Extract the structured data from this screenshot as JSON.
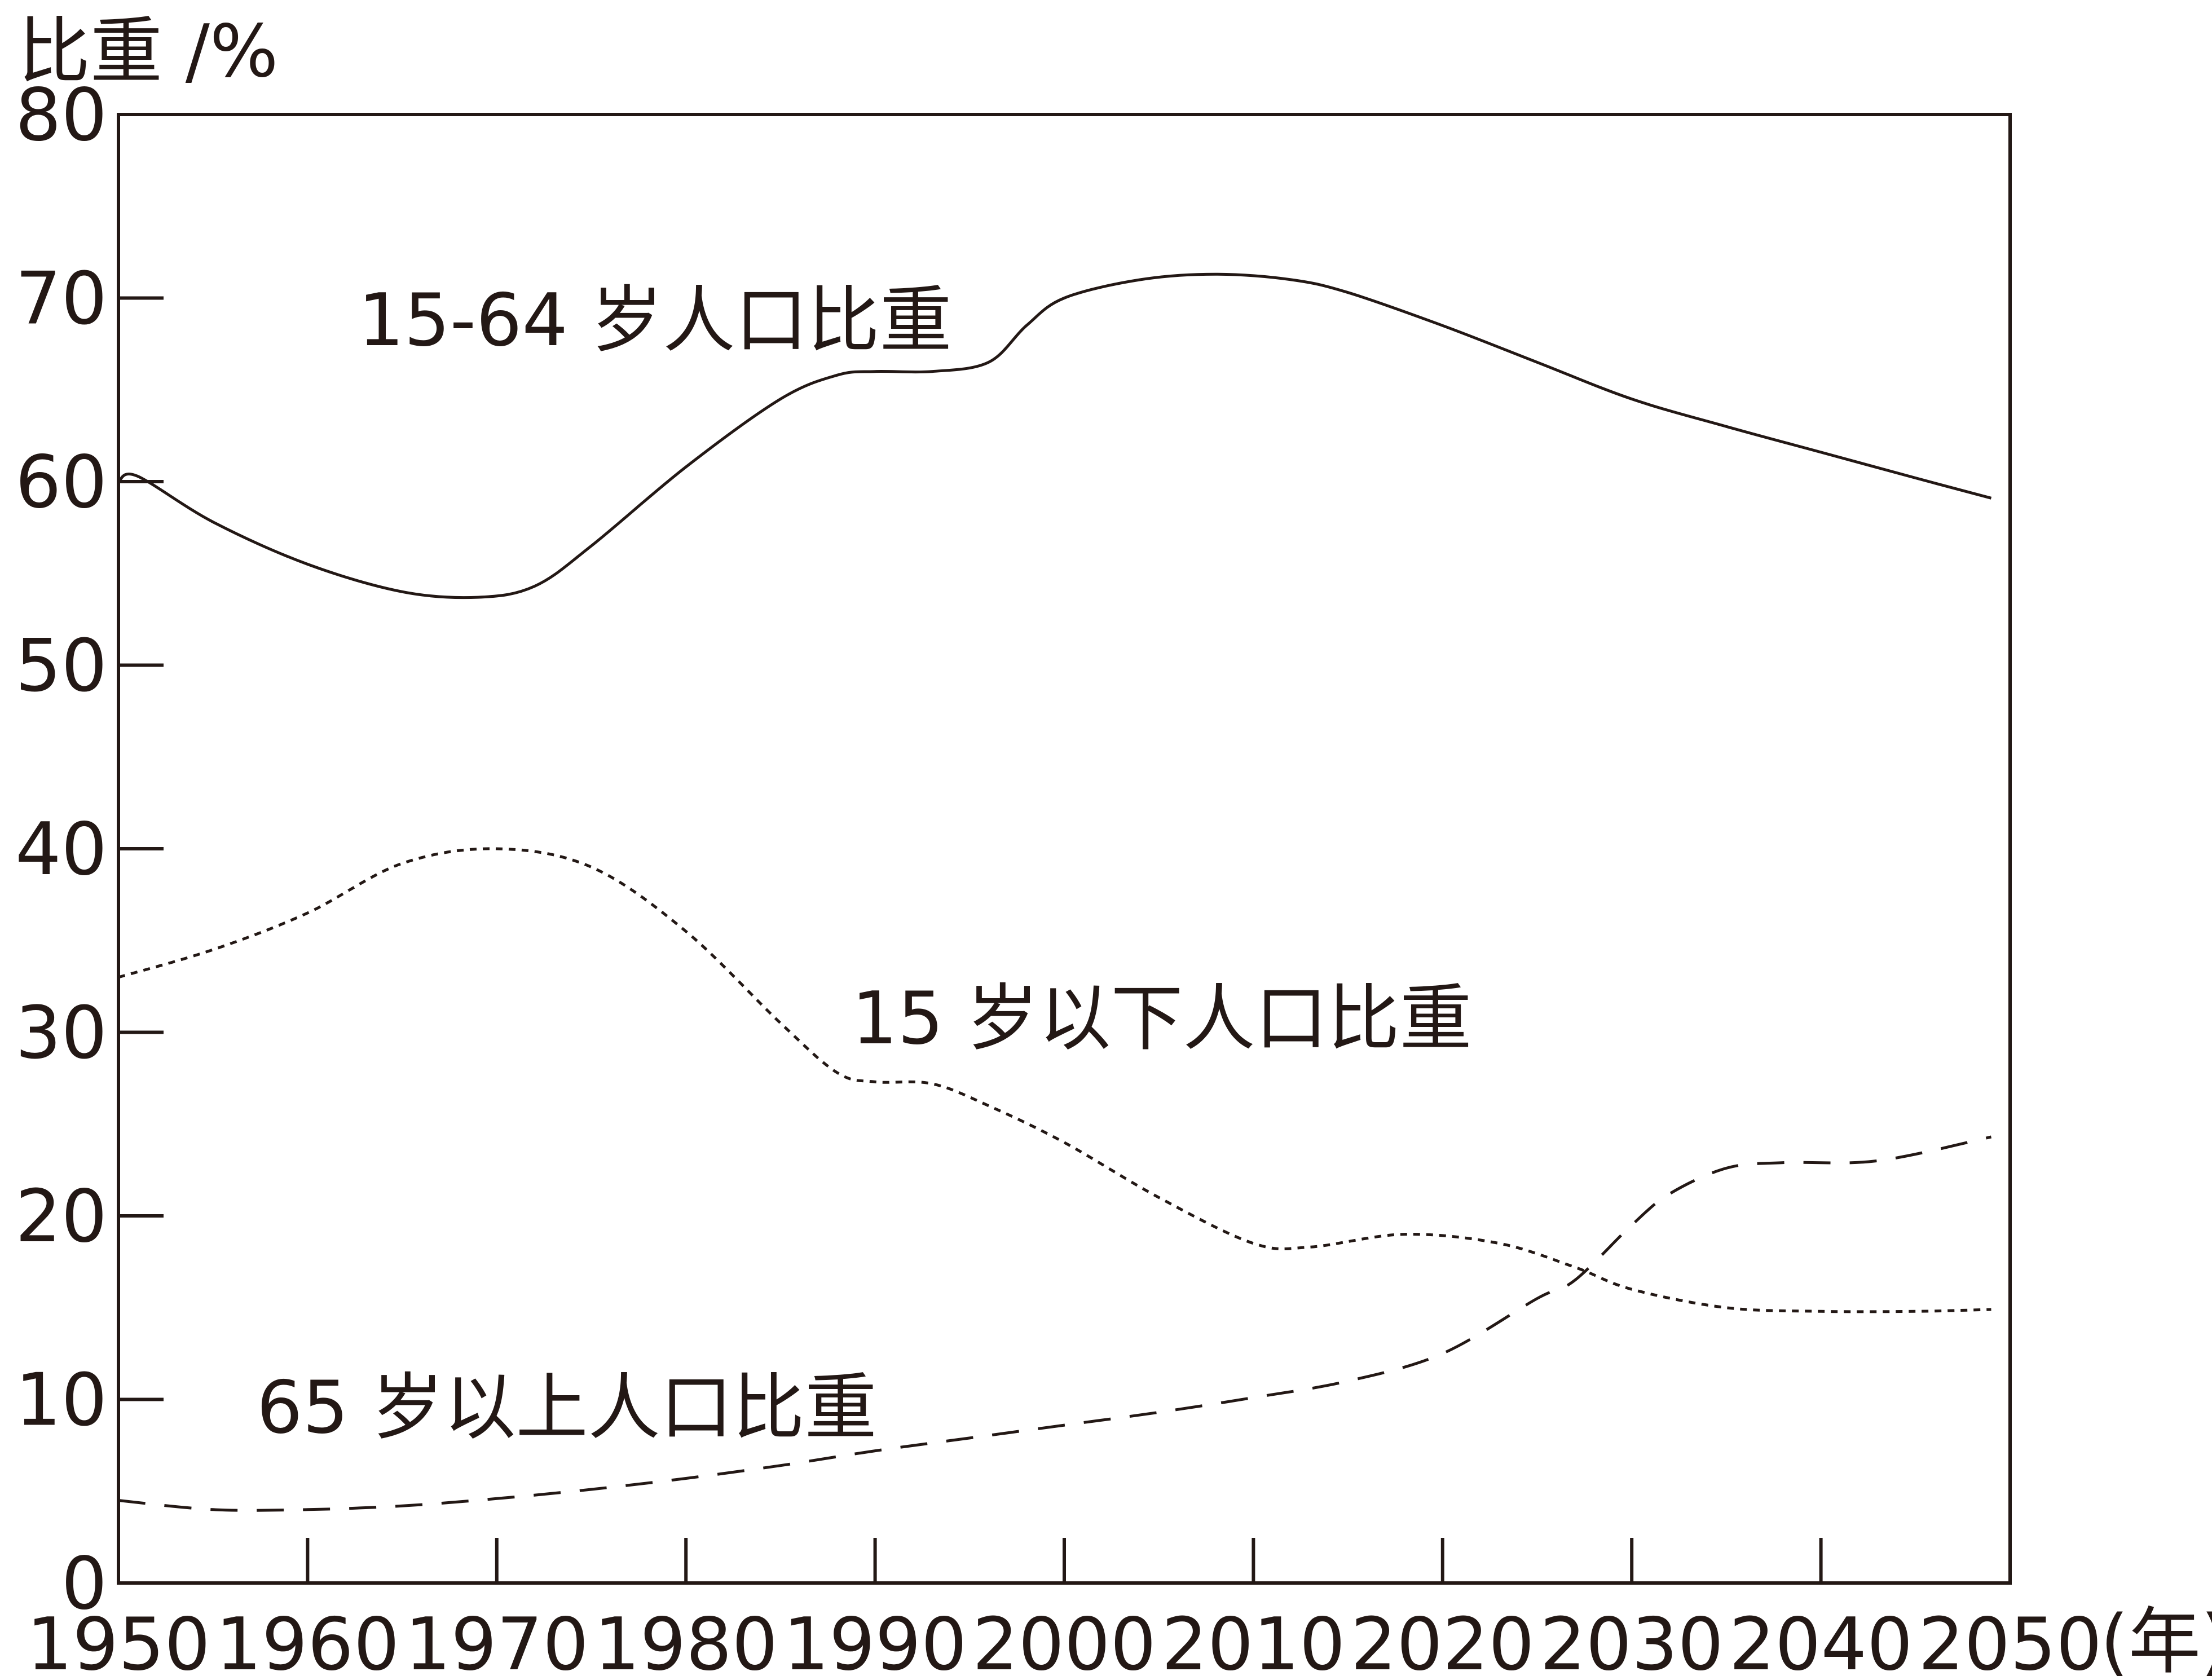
{
  "chart_data": {
    "type": "line",
    "ylabel": "比重 /%",
    "xunit": "(年)",
    "xlim": [
      1950,
      2050
    ],
    "ylim": [
      0,
      80
    ],
    "x_ticks": [
      "1950",
      "1960",
      "1970",
      "1980",
      "1990",
      "2000",
      "2010",
      "2020",
      "2030",
      "2040",
      "2050"
    ],
    "y_ticks": [
      "0",
      "10",
      "20",
      "30",
      "40",
      "50",
      "60",
      "70",
      "80"
    ],
    "grid": false,
    "legend": "inline labels",
    "series": [
      {
        "name": "15-64 岁人口比重",
        "style": "solid",
        "x": [
          1950,
          1951,
          1955,
          1960,
          1965,
          1969,
          1972,
          1975,
          1980,
          1985,
          1988,
          1990,
          1993,
          1996,
          1998,
          2000,
          2004,
          2008,
          2012,
          2015,
          2020,
          2025,
          2030,
          2035,
          2040,
          2045,
          2049
        ],
        "values": [
          60,
          60.3,
          57.8,
          55.5,
          54,
          53.7,
          54.3,
          56.5,
          60.8,
          64.5,
          65.8,
          66,
          66,
          66.5,
          68.5,
          70,
          71,
          71.3,
          71,
          70.3,
          68.5,
          66.5,
          64.5,
          63,
          61.6,
          60.2,
          59.1
        ]
      },
      {
        "name": "15 岁以下人口比重",
        "style": "dotted",
        "x": [
          1950,
          1955,
          1960,
          1965,
          1970,
          1975,
          1980,
          1985,
          1988,
          1990,
          1993,
          1996,
          2000,
          2005,
          2010,
          2013,
          2018,
          2023,
          2027,
          2030,
          2035,
          2040,
          2045,
          2049
        ],
        "values": [
          33,
          34.5,
          36.5,
          39.2,
          40,
          39,
          35.5,
          30.5,
          27.8,
          27.3,
          27.2,
          26,
          24,
          21,
          18.5,
          18.3,
          19,
          18.5,
          17.2,
          16,
          15,
          14.8,
          14.8,
          14.9
        ]
      },
      {
        "name": "65 岁以上人口比重",
        "style": "dashed",
        "x": [
          1950,
          1955,
          1960,
          1965,
          1970,
          1975,
          1980,
          1985,
          1990,
          1995,
          2000,
          2005,
          2010,
          2015,
          2020,
          2025,
          2027,
          2030,
          2032,
          2035,
          2038,
          2043,
          2049
        ],
        "values": [
          4.5,
          4,
          4,
          4.2,
          4.6,
          5.1,
          5.7,
          6.4,
          7.2,
          7.9,
          8.6,
          9.3,
          10.1,
          11,
          12.5,
          15.5,
          16.5,
          19.5,
          21.2,
          22.6,
          22.9,
          23,
          24.3
        ]
      }
    ]
  }
}
